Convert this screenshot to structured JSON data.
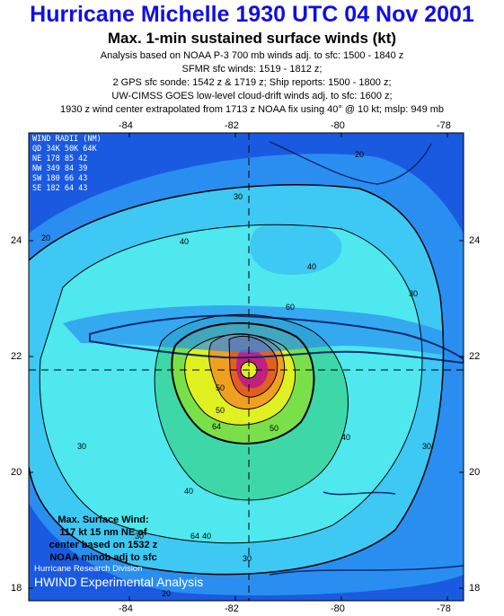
{
  "header": {
    "title": "Hurricane Michelle 1930 UTC 04 Nov 2001",
    "subtitle": "Max. 1-min sustained surface winds (kt)",
    "lines": [
      "Analysis based on NOAA P-3 700 mb winds adj. to sfc: 1500 - 1840 z",
      "SFMR sfc winds: 1519 - 1812 z;",
      "2 GPS sfc sonde: 1542 z & 1719 z; Ship reports: 1500 - 1800 z;",
      "UW-CIMSS GOES low-level cloud-drift winds adj. to sfc: 1600 z;",
      "1930 z wind center extrapolated from 1713 z NOAA fix using 40° @ 10 kt; mslp: 949 mb"
    ]
  },
  "axes": {
    "lon_ticks": [
      "-84",
      "-82",
      "-80",
      "-78"
    ],
    "lat_ticks": [
      "24",
      "22",
      "20",
      "18"
    ]
  },
  "wind_radii": {
    "header": "WIND RADII (NM)",
    "columns": "QD 34K 50K 64K",
    "rows": [
      "NE 178  85  42",
      "NW 349  84  39",
      "SW 180  66  43",
      "SE 182  64  43"
    ]
  },
  "max_wind": {
    "lines": [
      "Max. Surface Wind:",
      "117 kt 15 nm NE of",
      "center based on  1532 z",
      "NOAA minob adj to sfc"
    ]
  },
  "credits": {
    "division": "Hurricane Research Division",
    "product": "HWIND Experimental Analysis"
  },
  "contour_labels": [
    "20",
    "30",
    "40",
    "50",
    "60",
    "64",
    "30",
    "40",
    "40",
    "30",
    "40",
    "50",
    "30",
    "20",
    "30",
    "40",
    "50",
    "64",
    "30",
    "20"
  ],
  "colors": {
    "title": "#1010e0",
    "outer": "#1a5ae0",
    "band20": "#2a8ef0",
    "band30": "#3ec8f4",
    "band40": "#4ee8ee",
    "band50": "#3ed8a8",
    "band60": "#7ae04a",
    "band70": "#e0f020",
    "band80": "#f0a020",
    "band90": "#e06020",
    "band100": "#c02080",
    "land": "#0a2a70"
  }
}
